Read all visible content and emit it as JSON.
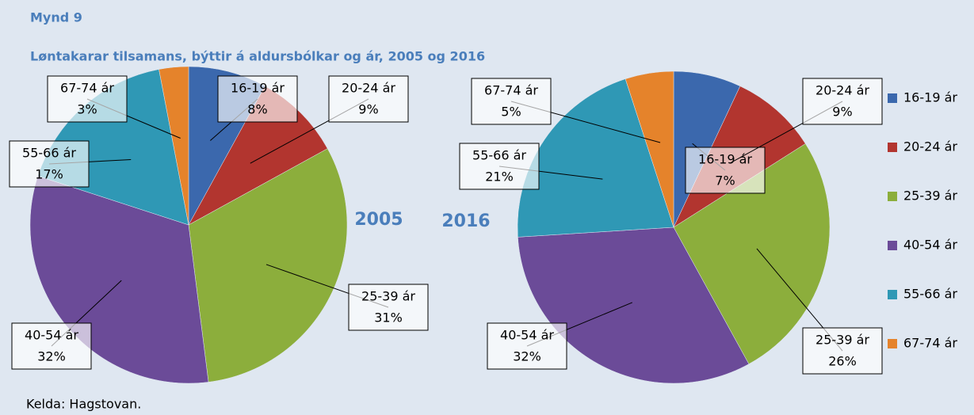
{
  "title": "Mynd 9",
  "subtitle": "Løntakarar tilsamans, býttir á aldursbólkar og ár, 2005 og 2016",
  "source": "Kelda: Hagstovan.",
  "chart_data": [
    {
      "type": "pie",
      "title": "2005",
      "categories": [
        "16-19 ár",
        "20-24 ár",
        "25-39 ár",
        "40-54 ár",
        "55-66 ár",
        "67-74 ár"
      ],
      "values": [
        8,
        9,
        31,
        32,
        17,
        3
      ],
      "value_labels": [
        "8%",
        "9%",
        "31%",
        "32%",
        "17%",
        "3%"
      ],
      "colors": [
        "#3b68ad",
        "#b2352f",
        "#8cae3c",
        "#6b4b98",
        "#2f98b5",
        "#e5832b"
      ]
    },
    {
      "type": "pie",
      "title": "2016",
      "categories": [
        "16-19 ár",
        "20-24 ár",
        "25-39 ár",
        "40-54 ár",
        "55-66 ár",
        "67-74 ár"
      ],
      "values": [
        7,
        9,
        26,
        32,
        21,
        5
      ],
      "value_labels": [
        "7%",
        "9%",
        "26%",
        "32%",
        "21%",
        "5%"
      ],
      "colors": [
        "#3b68ad",
        "#b2352f",
        "#8cae3c",
        "#6b4b98",
        "#2f98b5",
        "#e5832b"
      ],
      "legend": "right"
    }
  ]
}
